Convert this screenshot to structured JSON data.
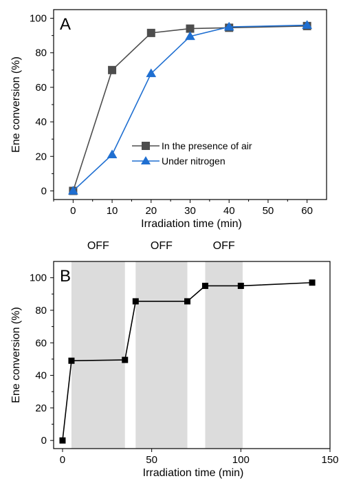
{
  "chart_data": [
    {
      "panel_label": "A",
      "type": "line",
      "xlabel": "Irradiation time (min)",
      "ylabel": "Ene conversion (%)",
      "xlim": [
        -5,
        65
      ],
      "ylim": [
        -5,
        105
      ],
      "xticks": [
        0,
        10,
        20,
        30,
        40,
        50,
        60
      ],
      "yticks": [
        0,
        20,
        40,
        60,
        80,
        100
      ],
      "legend_position": "center-right",
      "grid": false,
      "series": [
        {
          "name": "In the presence of air",
          "color": "#4d4d4d",
          "marker": "square",
          "x": [
            0,
            10,
            20,
            30,
            40,
            60
          ],
          "y": [
            0,
            70,
            91.5,
            94,
            94.5,
            95.5
          ]
        },
        {
          "name": "Under nitrogen",
          "color": "#1f6fd1",
          "marker": "triangle",
          "x": [
            0,
            10,
            20,
            30,
            40,
            60
          ],
          "y": [
            0,
            21,
            68,
            89.5,
            95,
            96
          ]
        }
      ]
    },
    {
      "panel_label": "B",
      "type": "line",
      "xlabel": "Irradiation time (min)",
      "ylabel": "Ene conversion (%)",
      "xlim": [
        -5,
        150
      ],
      "ylim": [
        -5,
        110
      ],
      "xticks": [
        0,
        50,
        100,
        150
      ],
      "yticks": [
        0,
        20,
        40,
        60,
        80,
        100
      ],
      "grid": false,
      "shaded_regions": [
        {
          "label": "OFF",
          "x0": 5,
          "x1": 35
        },
        {
          "label": "OFF",
          "x0": 41,
          "x1": 70
        },
        {
          "label": "OFF",
          "x0": 80,
          "x1": 101
        }
      ],
      "series": [
        {
          "color": "#000000",
          "marker": "square",
          "x": [
            0,
            5,
            35,
            41,
            70,
            80,
            100,
            140
          ],
          "y": [
            0,
            49,
            49.5,
            85.5,
            85.5,
            95,
            95,
            97
          ]
        }
      ]
    }
  ]
}
